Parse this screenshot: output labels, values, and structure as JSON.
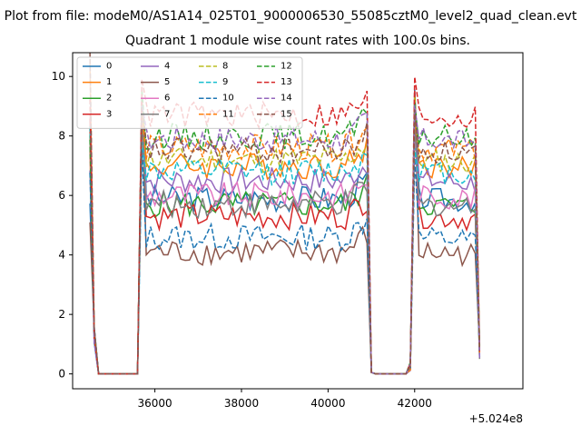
{
  "suptitle": "Plot from file: modeM0/AS1A14_025T01_9000006530_55085cztM0_level2_quad_clean.evt",
  "chart_data": {
    "type": "line",
    "title": "Quadrant 1 module wise count rates with 100.0s bins.",
    "xlabel": "",
    "ylabel": "",
    "x_offset_label": "+5.024e8",
    "xlim": [
      34100,
      44500
    ],
    "ylim": [
      -0.5,
      10.8
    ],
    "xticks": [
      36000,
      38000,
      40000,
      42000
    ],
    "xtick_labels": [
      "36000",
      "38000",
      "40000",
      "42000"
    ],
    "yticks": [
      0,
      2,
      4,
      6,
      8,
      10
    ],
    "ytick_labels": [
      "0",
      "2",
      "4",
      "6",
      "8",
      "10"
    ],
    "legend_location": "upper-left",
    "legend_columns": 4,
    "gti_segments": [
      {
        "start": 34550,
        "end": 34700
      },
      {
        "start": 35650,
        "end": 40950
      },
      {
        "start": 41950,
        "end": 43500
      }
    ],
    "series": [
      {
        "name": "0",
        "color": "#1f77b4",
        "dash": "solid",
        "level": 5.9,
        "peak": 9.2
      },
      {
        "name": "1",
        "color": "#ff7f0e",
        "dash": "solid",
        "level": 7.0,
        "peak": 8.9
      },
      {
        "name": "2",
        "color": "#2ca02c",
        "dash": "solid",
        "level": 5.7,
        "peak": 8.3
      },
      {
        "name": "3",
        "color": "#d62728",
        "dash": "solid",
        "level": 5.3,
        "peak": 9.4
      },
      {
        "name": "4",
        "color": "#9467bd",
        "dash": "solid",
        "level": 6.5,
        "peak": 8.7
      },
      {
        "name": "5",
        "color": "#8c564b",
        "dash": "solid",
        "level": 4.1,
        "peak": 9.0
      },
      {
        "name": "6",
        "color": "#e377c2",
        "dash": "solid",
        "level": 6.0,
        "peak": 8.0
      },
      {
        "name": "7",
        "color": "#7f7f7f",
        "dash": "solid",
        "level": 5.7,
        "peak": 8.2
      },
      {
        "name": "8",
        "color": "#bcbd22",
        "dash": "dashed",
        "level": 7.2,
        "peak": 9.0
      },
      {
        "name": "9",
        "color": "#17becf",
        "dash": "dashed",
        "level": 6.8,
        "peak": 7.6
      },
      {
        "name": "10",
        "color": "#1f77b4",
        "dash": "dashed",
        "level": 4.6,
        "peak": 7.2
      },
      {
        "name": "11",
        "color": "#ff7f0e",
        "dash": "dashed",
        "level": 7.6,
        "peak": 8.4
      },
      {
        "name": "12",
        "color": "#2ca02c",
        "dash": "dashed",
        "level": 8.0,
        "peak": 9.0
      },
      {
        "name": "13",
        "color": "#d62728",
        "dash": "dashed",
        "level": 8.7,
        "peak": 9.8
      },
      {
        "name": "14",
        "color": "#9467bd",
        "dash": "dashed",
        "level": 7.9,
        "peak": 8.8
      },
      {
        "name": "15",
        "color": "#8c564b",
        "dash": "dashed",
        "level": 7.5,
        "peak": 8.6
      }
    ]
  }
}
